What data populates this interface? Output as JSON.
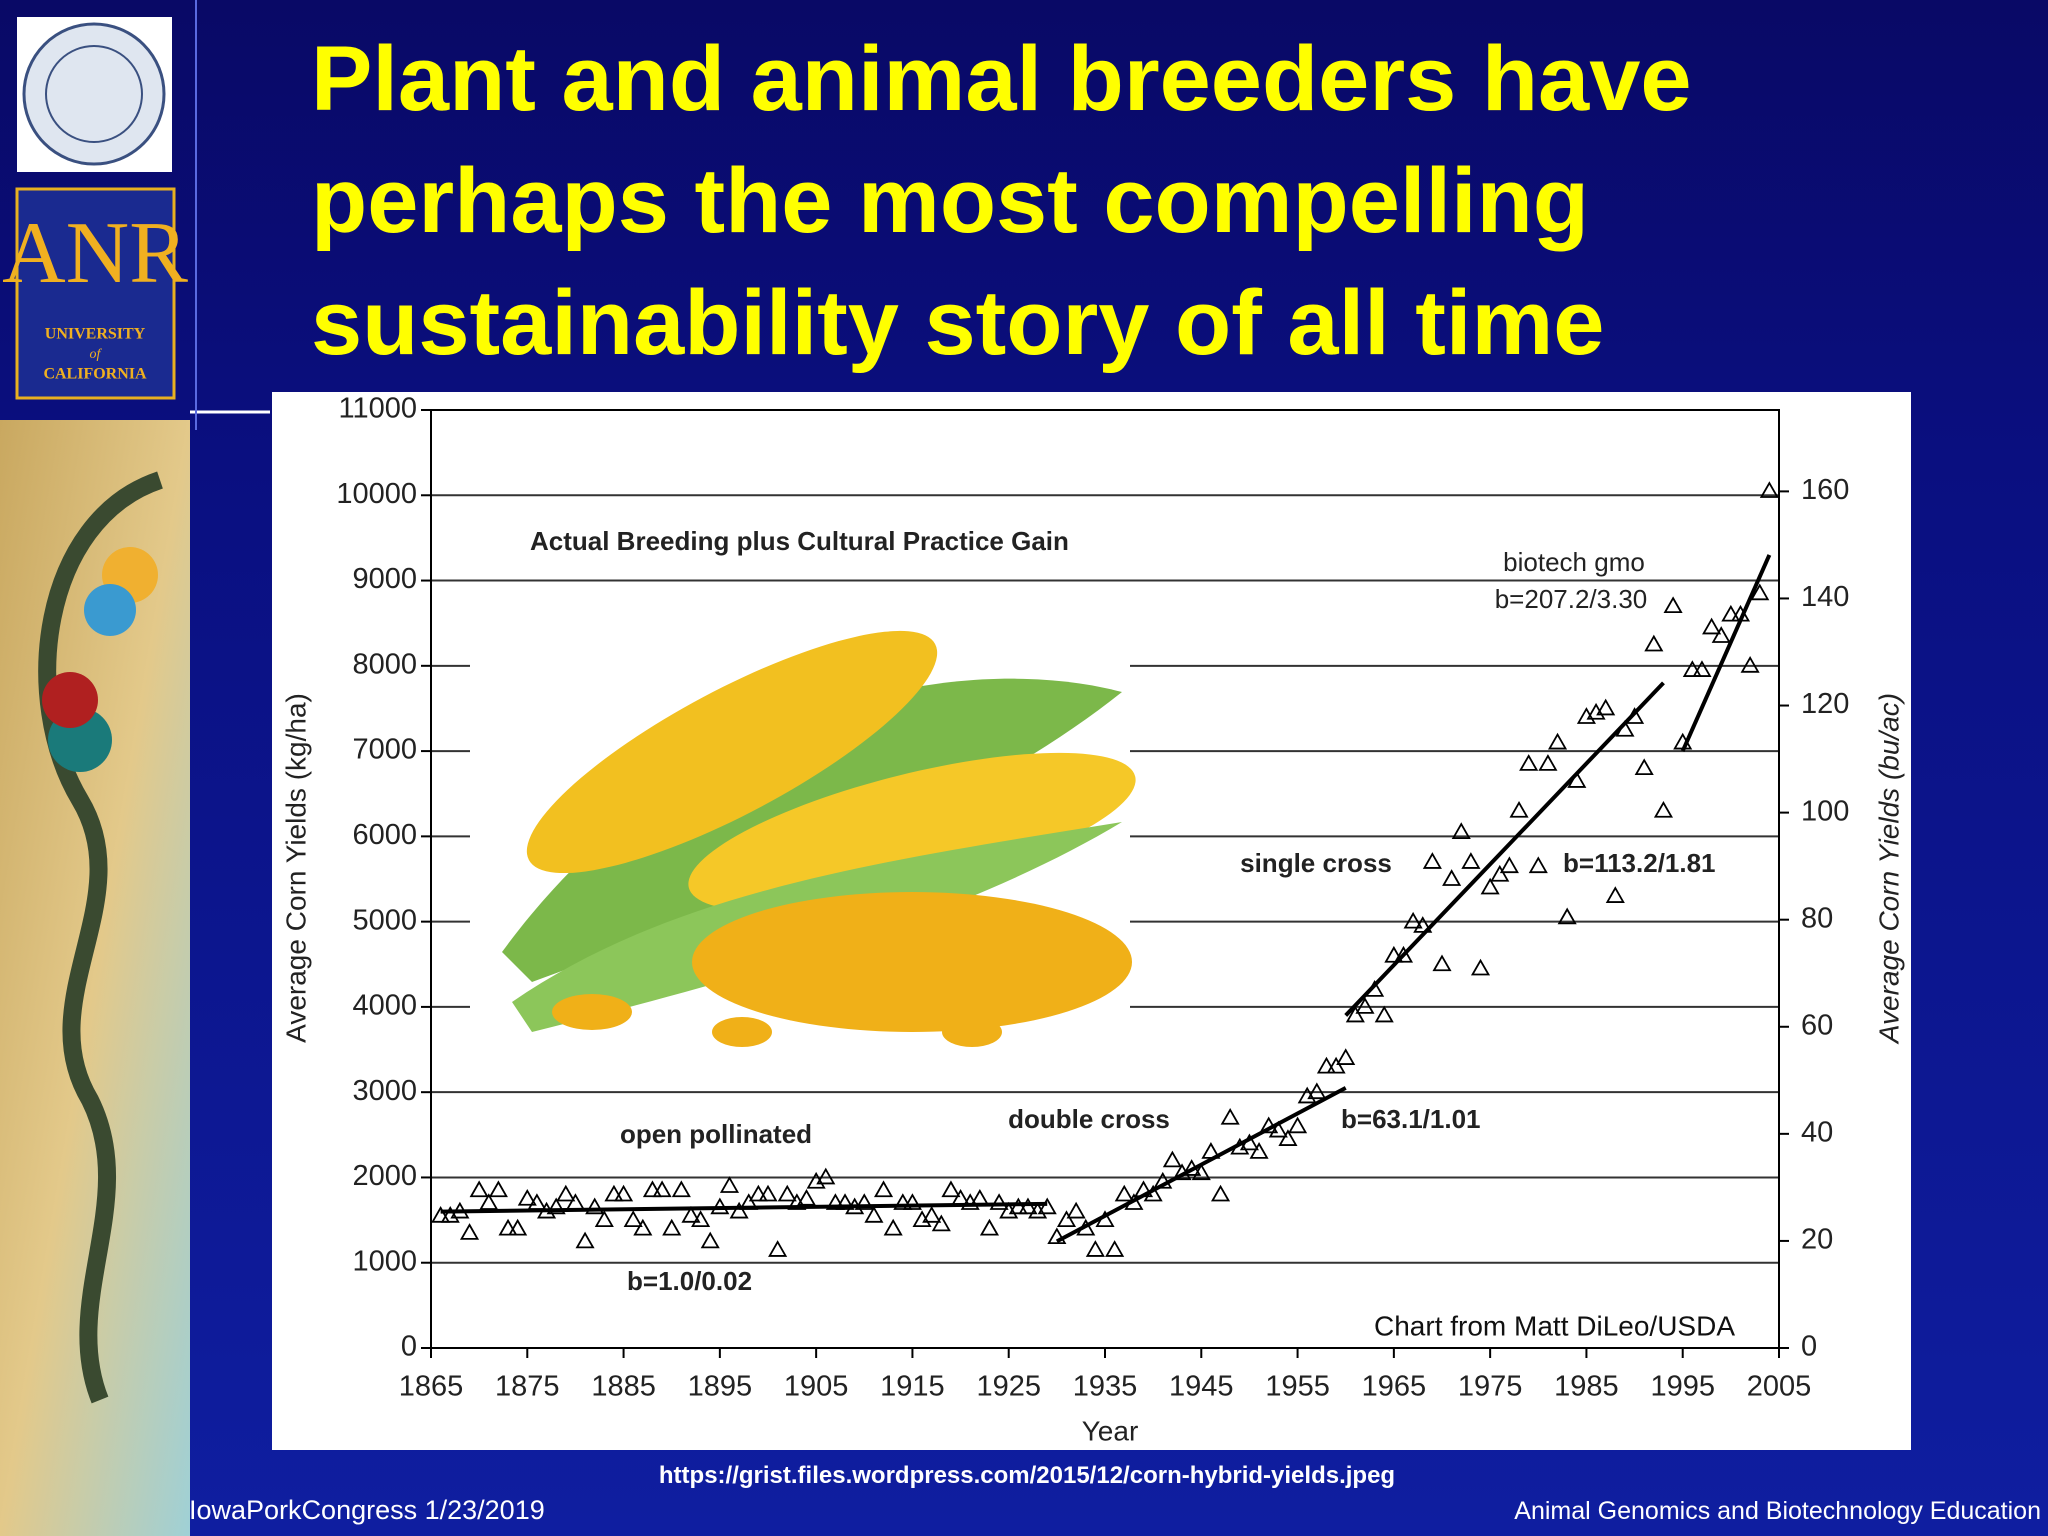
{
  "slide": {
    "title_lines": [
      "Plant and animal breeders have",
      "perhaps the most compelling",
      "sustainability story of all time"
    ],
    "source_url": "https://grist.files.wordpress.com/2015/12/corn-hybrid-yields.jpeg",
    "footer_left": "IowaPorkCongress 1/23/2019",
    "footer_right": "Animal Genomics and Biotechnology Education",
    "logo": {
      "acronym": "ANR",
      "line1": "UNIVERSITY",
      "line2": "of",
      "line3": "CALIFORNIA"
    }
  },
  "chart_data": {
    "type": "scatter",
    "title": "Actual Breeding plus Cultural Practice Gain",
    "x_label": "Year",
    "y_label": "Average Corn Yields (kg/ha)",
    "y2_label": "Average Corn Yields (bu/ac)",
    "source": "Chart from Matt DiLeo/USDA",
    "x": [
      1866,
      1867,
      1868,
      1869,
      1870,
      1871,
      1872,
      1873,
      1874,
      1875,
      1876,
      1877,
      1878,
      1879,
      1880,
      1881,
      1882,
      1883,
      1884,
      1885,
      1886,
      1887,
      1888,
      1889,
      1890,
      1891,
      1892,
      1893,
      1894,
      1895,
      1896,
      1897,
      1898,
      1899,
      1900,
      1901,
      1902,
      1903,
      1904,
      1905,
      1906,
      1907,
      1908,
      1909,
      1910,
      1911,
      1912,
      1913,
      1914,
      1915,
      1916,
      1917,
      1918,
      1919,
      1920,
      1921,
      1922,
      1923,
      1924,
      1925,
      1926,
      1927,
      1928,
      1929,
      1930,
      1931,
      1932,
      1933,
      1934,
      1935,
      1936,
      1937,
      1938,
      1939,
      1940,
      1941,
      1942,
      1943,
      1944,
      1945,
      1946,
      1947,
      1948,
      1949,
      1950,
      1951,
      1952,
      1953,
      1954,
      1955,
      1956,
      1957,
      1958,
      1959,
      1960,
      1961,
      1962,
      1963,
      1964,
      1965,
      1966,
      1967,
      1968,
      1969,
      1970,
      1971,
      1972,
      1973,
      1974,
      1975,
      1976,
      1977,
      1978,
      1979,
      1980,
      1981,
      1982,
      1983,
      1984,
      1985,
      1986,
      1987,
      1988,
      1989,
      1990,
      1991,
      1992,
      1993,
      1994,
      1995,
      1996,
      1997,
      1998,
      1999,
      2000,
      2001,
      2002,
      2003,
      2004
    ],
    "series": [
      {
        "color": "#000000",
        "values": [
          1550,
          1550,
          1600,
          1350,
          1850,
          1700,
          1850,
          1400,
          1400,
          1750,
          1700,
          1600,
          1650,
          1800,
          1700,
          1250,
          1650,
          1500,
          1800,
          1800,
          1500,
          1400,
          1850,
          1850,
          1400,
          1850,
          1550,
          1500,
          1250,
          1650,
          1900,
          1600,
          1700,
          1800,
          1800,
          1150,
          1800,
          1700,
          1750,
          1950,
          2000,
          1700,
          1700,
          1650,
          1700,
          1550,
          1850,
          1400,
          1700,
          1700,
          1500,
          1550,
          1450,
          1850,
          1750,
          1700,
          1750,
          1400,
          1700,
          1600,
          1650,
          1650,
          1600,
          1650,
          1300,
          1500,
          1600,
          1400,
          1150,
          1500,
          1150,
          1800,
          1700,
          1850,
          1800,
          1950,
          2200,
          2050,
          2100,
          2050,
          2300,
          1800,
          2700,
          2350,
          2400,
          2300,
          2600,
          2550,
          2450,
          2600,
          2950,
          3000,
          3300,
          3300,
          3400,
          3900,
          4000,
          4200,
          3900,
          4600,
          4600,
          5000,
          4950,
          5700,
          4500,
          5500,
          6050,
          5700,
          4450,
          5400,
          5550,
          5650,
          6300,
          6850,
          5650,
          6850,
          7100,
          5050,
          6650,
          7400,
          7450,
          7500,
          5300,
          7250,
          7400,
          6800,
          8250,
          6300,
          8700,
          7100,
          7950,
          7950,
          8450,
          8350,
          8600,
          8600,
          8000,
          8850,
          10050
        ]
      }
    ],
    "trend_lines": [
      {
        "label": "b=1.0/0.02",
        "x": [
          1866,
          1929
        ],
        "values": [
          1600,
          1690
        ]
      },
      {
        "label": "b=63.1/1.01",
        "x": [
          1930,
          1960
        ],
        "values": [
          1250,
          3050
        ]
      },
      {
        "label": "b=113.2/1.81",
        "x": [
          1960,
          1993
        ],
        "values": [
          3900,
          7800
        ]
      },
      {
        "label": "b=207.2/3.30",
        "x": [
          1995,
          2004
        ],
        "values": [
          7000,
          9300
        ]
      }
    ],
    "annotations": [
      "open pollinated",
      "double cross",
      "single cross",
      "biotech gmo"
    ],
    "xlim": [
      1865,
      2005
    ],
    "xticks": [
      1865,
      1875,
      1885,
      1895,
      1905,
      1915,
      1925,
      1935,
      1945,
      1955,
      1965,
      1975,
      1985,
      1995,
      2005
    ],
    "ylim": [
      0,
      11000
    ],
    "yticks": [
      0,
      1000,
      2000,
      3000,
      4000,
      5000,
      6000,
      7000,
      8000,
      9000,
      10000,
      11000
    ],
    "y2lim": [
      0,
      175.2
    ],
    "y2ticks": [
      0,
      20,
      40,
      60,
      80,
      100,
      120,
      140,
      160
    ],
    "grid": true
  }
}
